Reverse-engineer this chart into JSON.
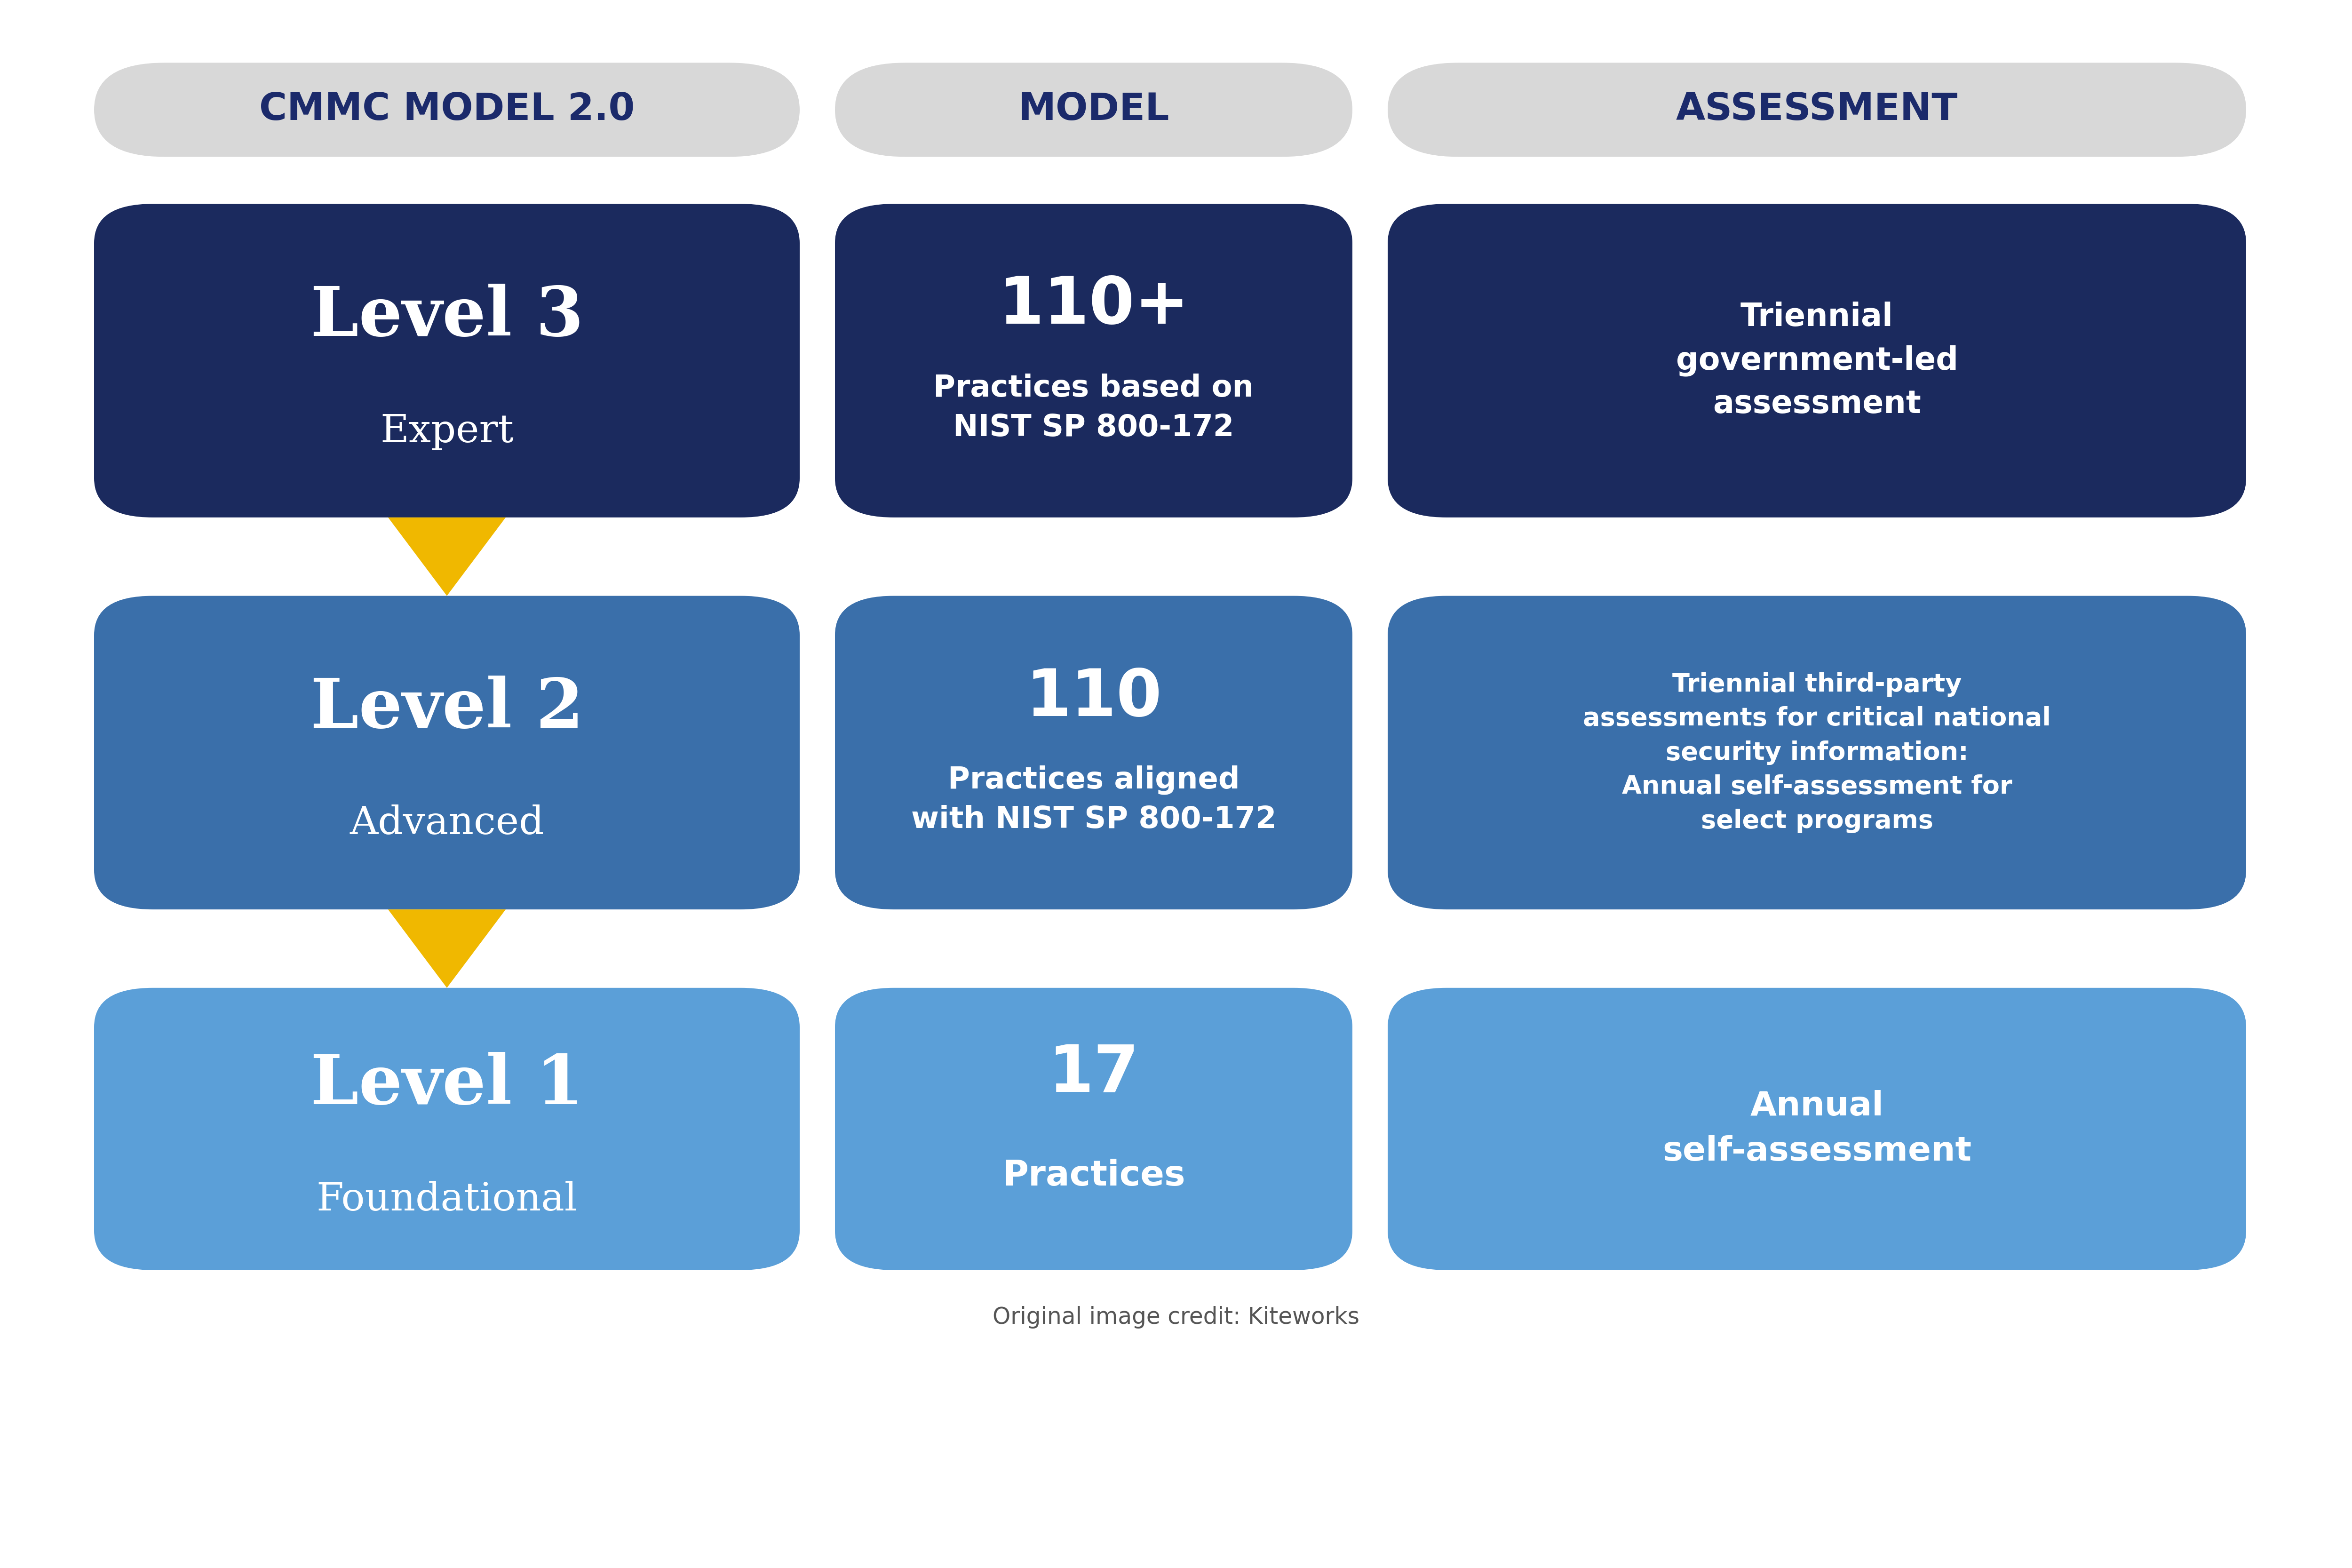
{
  "bg_color": "#ffffff",
  "header_bg": "#d8d8d8",
  "header_text_color": "#1b2a6b",
  "header_font_size": 58,
  "headers": [
    "CMMC MODEL 2.0",
    "MODEL",
    "ASSESSMENT"
  ],
  "level3_box_color": "#1b2a5e",
  "level2_box_color": "#3a6faa",
  "level1_box_color": "#5b9fd8",
  "level3_title": "Level 3",
  "level3_subtitle": "Expert",
  "level3_model_title": "110+",
  "level3_model_body": "Practices based on\nNIST SP 800-172",
  "level3_assess": "Triennial\ngovernment-led\nassessment",
  "level2_title": "Level 2",
  "level2_subtitle": "Advanced",
  "level2_model_title": "110",
  "level2_model_body": "Practices aligned\nwith NIST SP 800-172",
  "level2_assess": "Triennial third-party\nassessments for critical national\nsecurity information:\nAnnual self-assessment for\nselect programs",
  "level1_title": "Level 1",
  "level1_subtitle": "Foundational",
  "level1_model_title": "17",
  "level1_model_body": "Practices",
  "level1_assess": "Annual\nself-assessment",
  "arrow_color": "#f0b800",
  "credit_text": "Original image credit: Kiteworks",
  "credit_fontsize": 35
}
